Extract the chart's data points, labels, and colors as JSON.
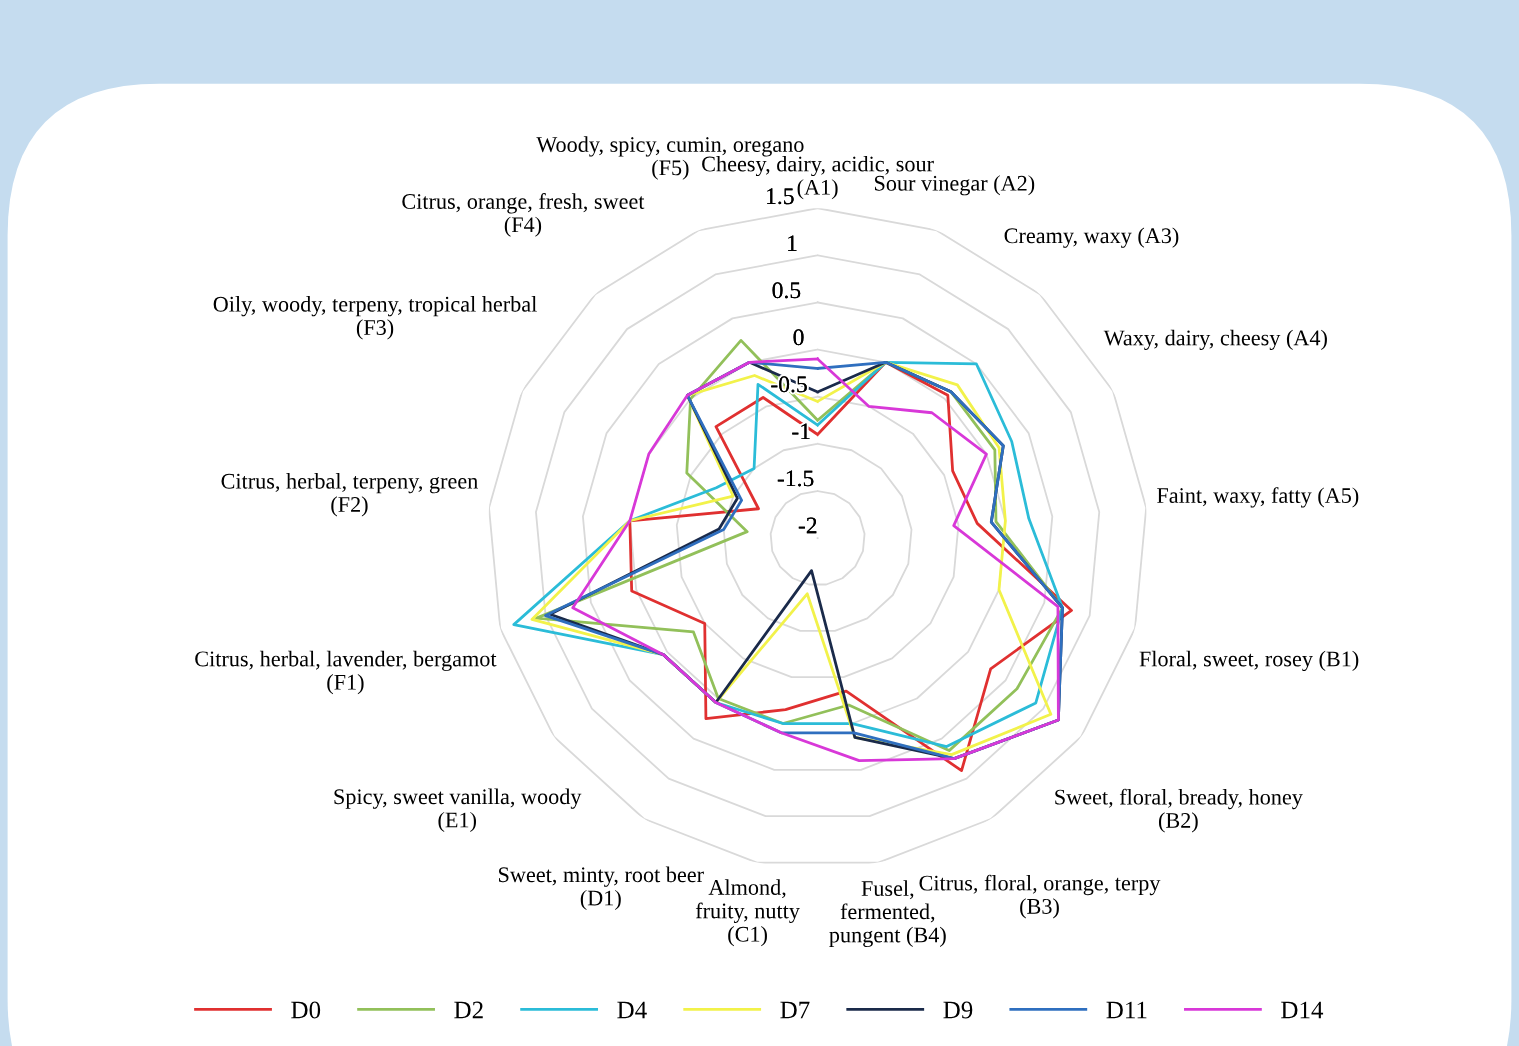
{
  "chart_data": {
    "type": "radar",
    "categories": [
      "Cheesy, dairy, acidic, sour (A1)",
      "Sour vinegar (A2)",
      "Creamy, waxy (A3)",
      "Waxy, dairy, cheesy (A4)",
      "Faint, waxy, fatty (A5)",
      "Floral, sweet, rosey (B1)",
      "Sweet, floral, bready, honey (B2)",
      "Citrus, floral, orange, terpy (B3)",
      "Fusel, fermented, pungent (B4)",
      "Almond, fruity, nutty (C1)",
      "Sweet, minty, root beer (D1)",
      "Spicy, sweet vanilla, woody (E1)",
      "Citrus, herbal, lavender, bergamot (F1)",
      "Citrus, herbal, terpeny, green (F2)",
      "Oily, woody, terpeny, tropical herbal (F3)",
      "Citrus, orange, fresh, sweet (F4)",
      "Woody, spicy, cumin, oregano (F5)"
    ],
    "series": [
      {
        "name": "D0",
        "color": "#e03030",
        "values": [
          -0.9,
          0,
          0.05,
          -0.4,
          -0.3,
          0.8,
          0.3,
          0.9,
          -0.35,
          -0.15,
          0.25,
          -0.5,
          0.05,
          0,
          -1.3,
          -0.4,
          -0.4
        ]
      },
      {
        "name": "D2",
        "color": "#92c05a",
        "values": [
          -0.75,
          0,
          0.1,
          0.1,
          -0.1,
          0.7,
          0.65,
          0.65,
          -0.2,
          0,
          0,
          -0.35,
          1.1,
          -1.25,
          -0.45,
          0,
          0.25
        ]
      },
      {
        "name": "D4",
        "color": "#2bbcd8",
        "values": [
          -0.8,
          0,
          0.5,
          0.3,
          0.25,
          0.7,
          0.9,
          0.6,
          0,
          0,
          0.05,
          0.05,
          1.35,
          0,
          -0.8,
          -1,
          -0.25
        ]
      },
      {
        "name": "D7",
        "color": "#f2f24a",
        "values": [
          -0.55,
          0,
          0.2,
          0.15,
          0,
          0,
          1.1,
          0.7,
          0.15,
          -1.4,
          0.05,
          0.05,
          1.15,
          0,
          -1,
          0.05,
          -0.15
        ]
      },
      {
        "name": "D9",
        "color": "#1a2a4a",
        "values": [
          -0.45,
          0,
          0.1,
          0.2,
          -0.15,
          0.7,
          1.2,
          0.75,
          0.15,
          -1.65,
          0.05,
          0.05,
          0.95,
          -0.95,
          -1.05,
          0.05,
          0
        ]
      },
      {
        "name": "D11",
        "color": "#2f6fbf",
        "values": [
          -0.2,
          0,
          0.1,
          0.2,
          -0.15,
          0.7,
          1.2,
          0.75,
          0.1,
          0.1,
          0.05,
          0.05,
          1.0,
          -1.0,
          -1.1,
          0.05,
          0
        ]
      },
      {
        "name": "D14",
        "color": "#d838d8",
        "values": [
          -0.1,
          -0.5,
          -0.2,
          0,
          -0.55,
          0.65,
          1.2,
          0.75,
          0.4,
          0.1,
          0.05,
          0.05,
          0.7,
          0,
          0,
          0.05,
          0
        ]
      }
    ],
    "ylim": [
      -2,
      1.5
    ],
    "yticks": [
      -2,
      -1.5,
      -1,
      -0.5,
      0,
      0.5,
      1,
      1.5
    ],
    "grid": true,
    "legend": "bottom",
    "marker": "none",
    "line_style": "solid"
  }
}
